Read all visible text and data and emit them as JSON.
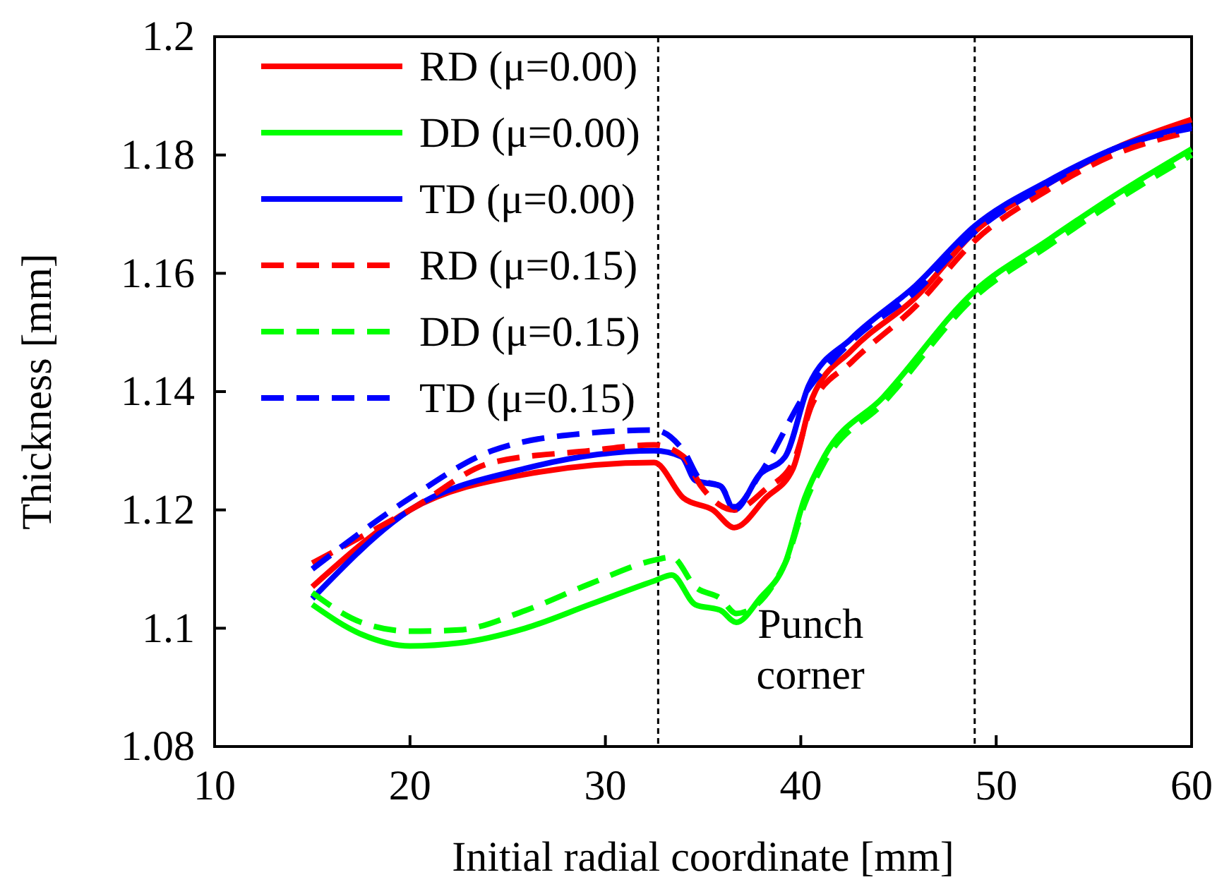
{
  "chart_data": {
    "type": "line",
    "xlabel": "Initial radial coordinate [mm]",
    "ylabel": "Thickness [mm]",
    "xlim": [
      10,
      60
    ],
    "xticks": [
      10,
      20,
      30,
      40,
      50,
      60
    ],
    "ylim": [
      1.08,
      1.2
    ],
    "yticks": [
      1.08,
      1.1,
      1.12,
      1.14,
      1.16,
      1.18,
      1.2
    ],
    "grid": false,
    "legend": "top left",
    "marker": "none",
    "series": [
      {
        "name": "RD (μ=0.00)",
        "color": "#ff0000",
        "line_style": "solid",
        "x": [
          15,
          20,
          25.9,
          32.5,
          34,
          35.5,
          36.6,
          38.2,
          39.6,
          40.6,
          42.6,
          45.9,
          48.9,
          52.6,
          56,
          60
        ],
        "values": [
          1.107,
          1.12,
          1.126,
          1.128,
          1.122,
          1.12,
          1.117,
          1.122,
          1.127,
          1.139,
          1.147,
          1.156,
          1.167,
          1.175,
          1.181,
          1.186
        ]
      },
      {
        "name": "DD (μ=0.00)",
        "color": "#00ff00",
        "line_style": "solid",
        "x": [
          15,
          17.5,
          20,
          22.5,
          25.9,
          29.2,
          32.5,
          33.4,
          34.6,
          35.9,
          36.7,
          37.9,
          39.2,
          40.2,
          41.2,
          44.2,
          48.9,
          52.6,
          56,
          60
        ],
        "values": [
          1.104,
          1.099,
          1.097,
          1.0975,
          1.1,
          1.104,
          1.108,
          1.109,
          1.104,
          1.103,
          1.101,
          1.105,
          1.111,
          1.122,
          1.129,
          1.139,
          1.157,
          1.1655,
          1.173,
          1.181
        ]
      },
      {
        "name": "TD (μ=0.00)",
        "color": "#0000ff",
        "line_style": "solid",
        "x": [
          15,
          20,
          25.9,
          32.5,
          33.9,
          34.6,
          35.9,
          36.6,
          37.9,
          39.2,
          40.4,
          42.6,
          45.9,
          48.9,
          52.6,
          56,
          60
        ],
        "values": [
          1.105,
          1.12,
          1.127,
          1.13,
          1.129,
          1.125,
          1.124,
          1.12,
          1.126,
          1.129,
          1.141,
          1.149,
          1.158,
          1.168,
          1.1755,
          1.181,
          1.185
        ]
      },
      {
        "name": "RD (μ=0.15)",
        "color": "#ff0000",
        "line_style": "dashed",
        "x": [
          15,
          20,
          24.2,
          29.2,
          32.5,
          34,
          34.9,
          36.6,
          38.2,
          39.6,
          40.6,
          42.6,
          45.9,
          48.9,
          52.6,
          56,
          60
        ],
        "values": [
          1.111,
          1.12,
          1.128,
          1.13,
          1.131,
          1.129,
          1.124,
          1.12,
          1.1235,
          1.128,
          1.138,
          1.145,
          1.1545,
          1.1655,
          1.174,
          1.18,
          1.184
        ]
      },
      {
        "name": "DD (μ=0.15)",
        "color": "#00ff00",
        "line_style": "dashed",
        "x": [
          15,
          17.5,
          20,
          22.5,
          25.9,
          29.2,
          32.5,
          33.4,
          34.6,
          35.9,
          36.7,
          39.2,
          40.2,
          41.2,
          44.2,
          48.9,
          52.6,
          56,
          60
        ],
        "values": [
          1.106,
          1.101,
          1.0995,
          1.0997,
          1.103,
          1.1075,
          1.1115,
          1.112,
          1.107,
          1.105,
          1.1025,
          1.111,
          1.121,
          1.128,
          1.138,
          1.156,
          1.1645,
          1.172,
          1.18
        ]
      },
      {
        "name": "TD (μ=0.15)",
        "color": "#0000ff",
        "line_style": "dashed",
        "x": [
          15,
          20,
          24.2,
          29.2,
          32.5,
          34,
          34.9,
          35.9,
          36.6,
          37.9,
          40.4,
          42.6,
          45.9,
          48.9,
          52.6,
          56,
          60
        ],
        "values": [
          1.11,
          1.122,
          1.13,
          1.133,
          1.1335,
          1.13,
          1.125,
          1.124,
          1.1205,
          1.126,
          1.1405,
          1.1485,
          1.157,
          1.167,
          1.175,
          1.181,
          1.1845
        ]
      }
    ],
    "ref_lines": [
      {
        "axis": "x",
        "value": 32.7,
        "color": "#000000",
        "line_style": "dashed"
      },
      {
        "axis": "x",
        "value": 48.9,
        "color": "#000000",
        "line_style": "dashed"
      }
    ],
    "annotations": [
      "Punch corner"
    ]
  }
}
